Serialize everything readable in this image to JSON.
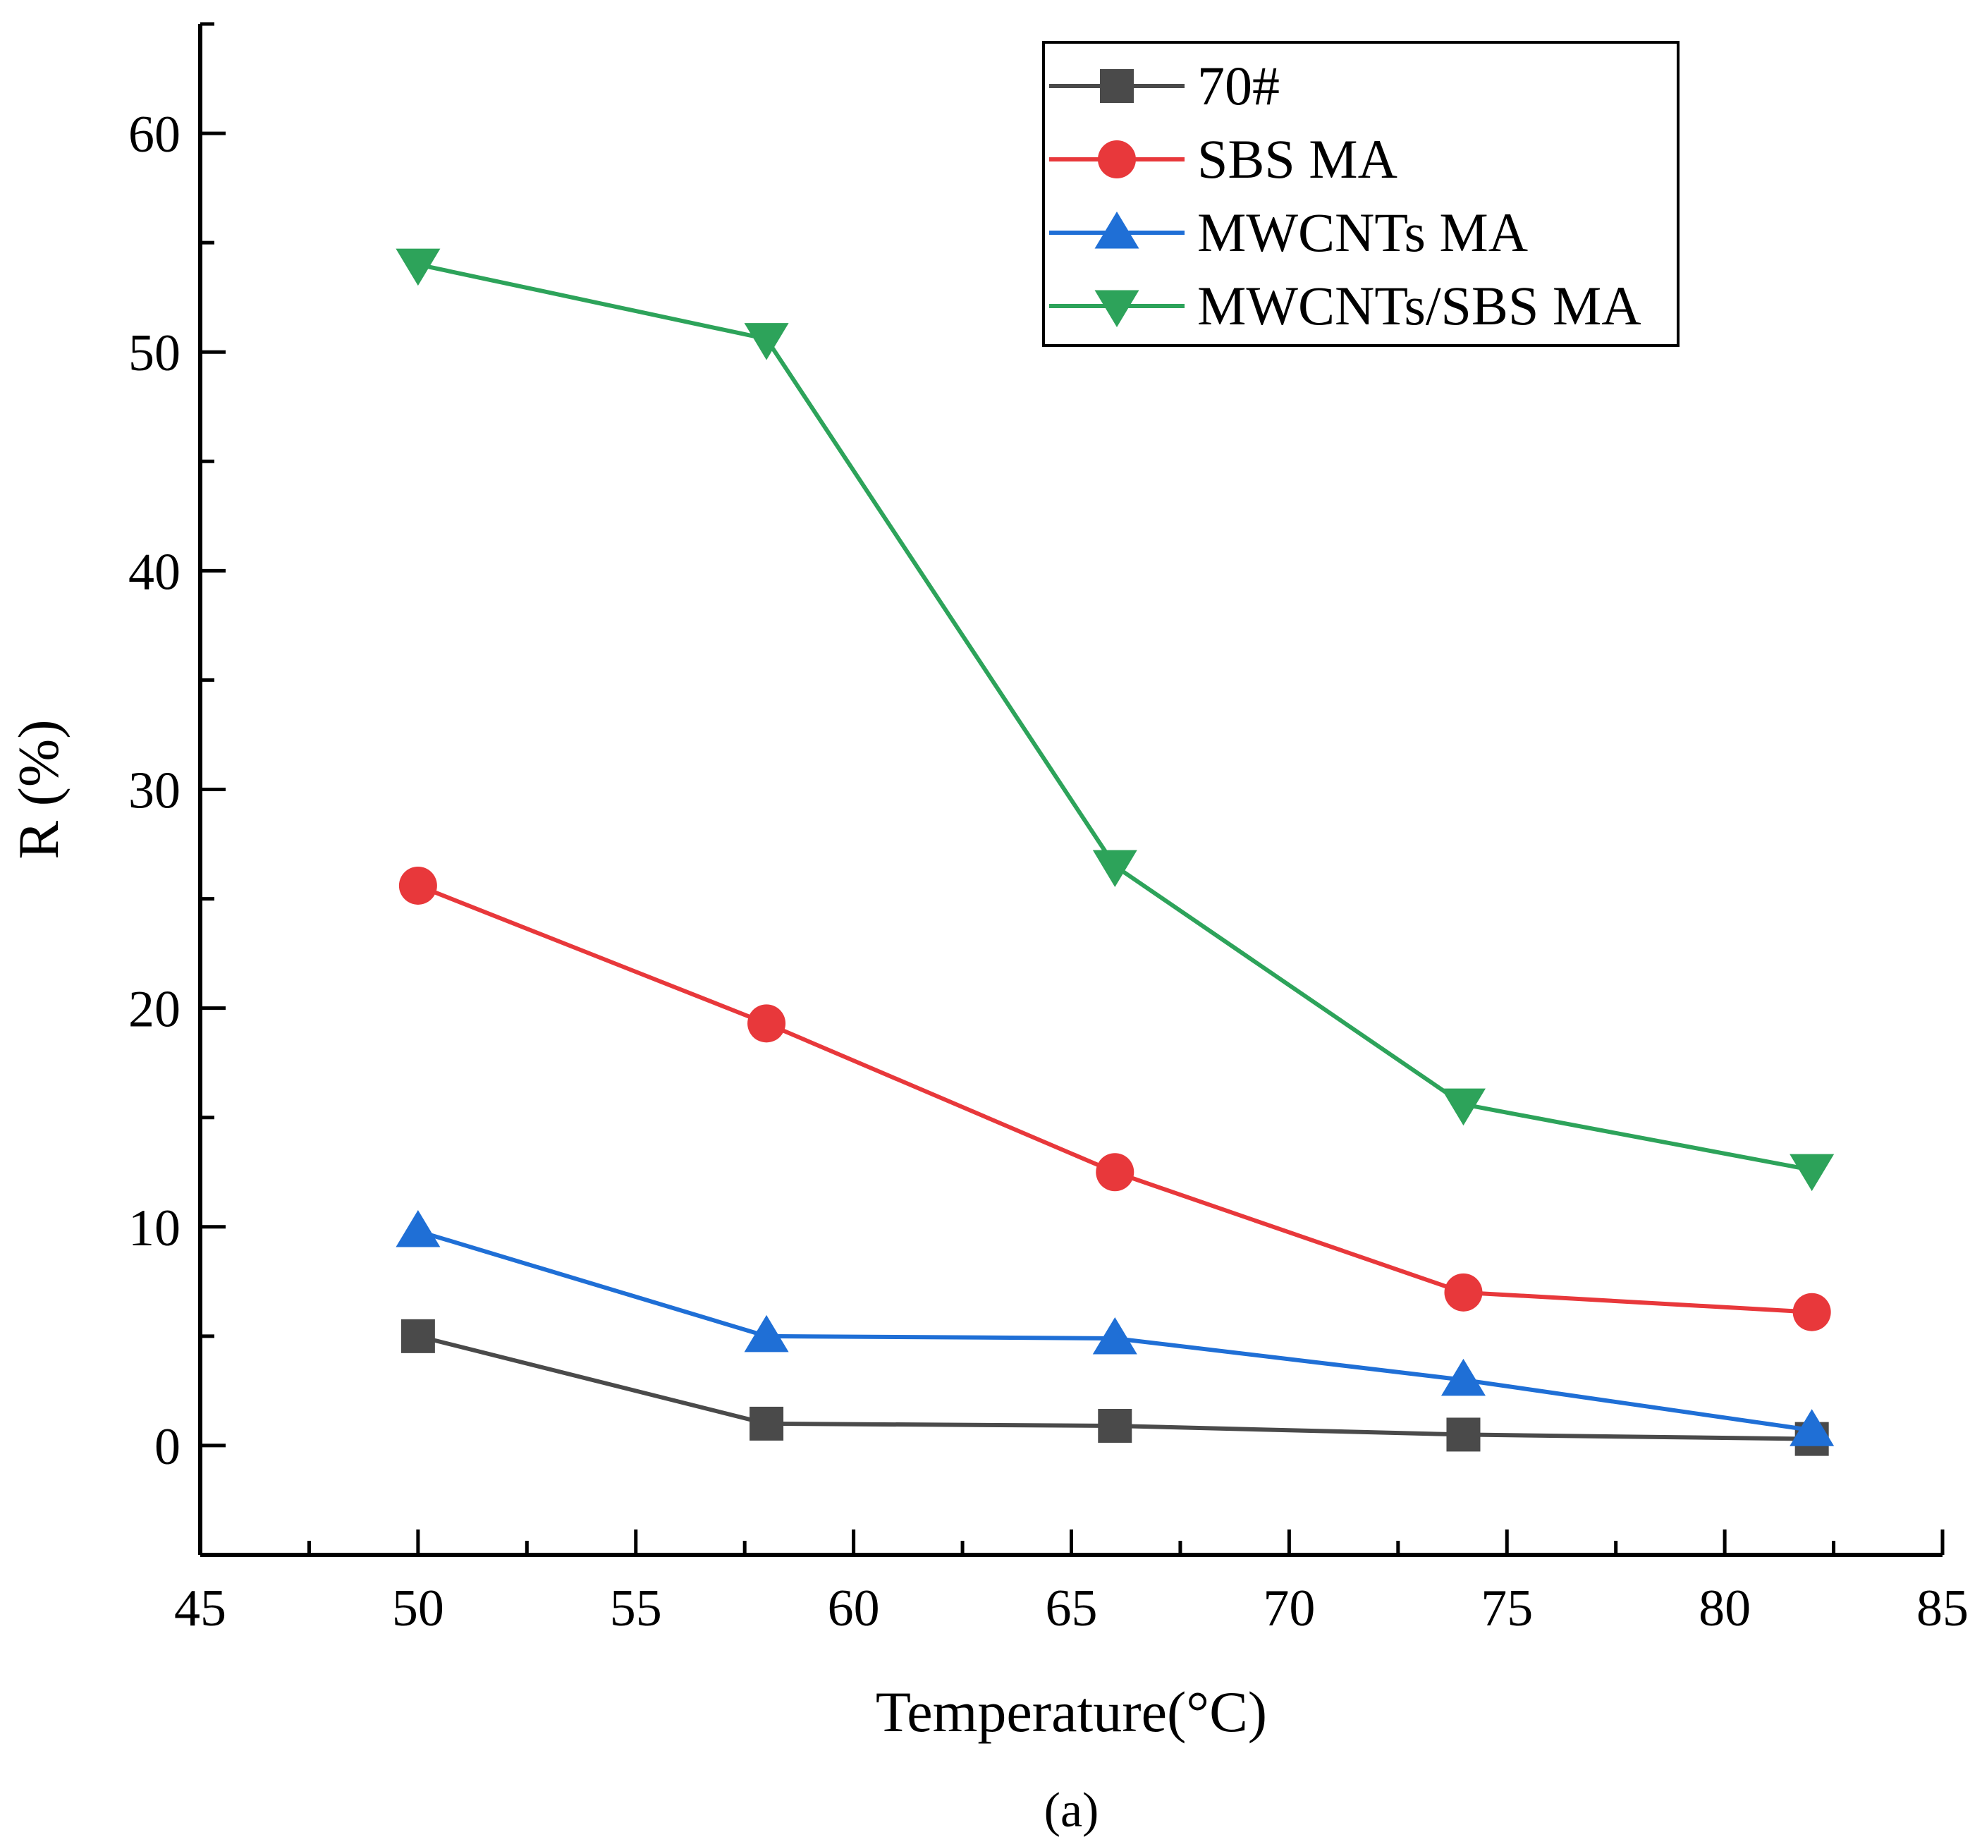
{
  "chart_data": {
    "type": "line",
    "title": "",
    "xlabel": "Temperature(°C)",
    "ylabel": "R (%)",
    "panel_label": "(a)",
    "xlim": [
      45,
      85
    ],
    "ylim": [
      -5,
      65
    ],
    "xticks": [
      "45",
      "50",
      "55",
      "60",
      "65",
      "70",
      "75",
      "80",
      "85"
    ],
    "yticks": [
      "0",
      "10",
      "20",
      "30",
      "40",
      "50",
      "60"
    ],
    "x": [
      50,
      58,
      66,
      74,
      82
    ],
    "legend_position": "top-right",
    "grid": false,
    "series": [
      {
        "name": "70#",
        "marker": "square",
        "color": "#4a4a4a",
        "values": [
          5.0,
          1.0,
          0.9,
          0.5,
          0.3
        ]
      },
      {
        "name": "SBS MA",
        "marker": "circle",
        "color": "#e8383b",
        "values": [
          25.6,
          19.3,
          12.5,
          7.0,
          6.1
        ]
      },
      {
        "name": "MWCNTs MA",
        "marker": "triangle-up",
        "color": "#1f6fd6",
        "values": [
          9.8,
          5.0,
          4.9,
          3.0,
          0.7
        ]
      },
      {
        "name": "MWCNTs/SBS MA",
        "marker": "triangle-down",
        "color": "#2da35a",
        "values": [
          54.0,
          50.6,
          26.5,
          15.6,
          12.6
        ]
      }
    ]
  }
}
